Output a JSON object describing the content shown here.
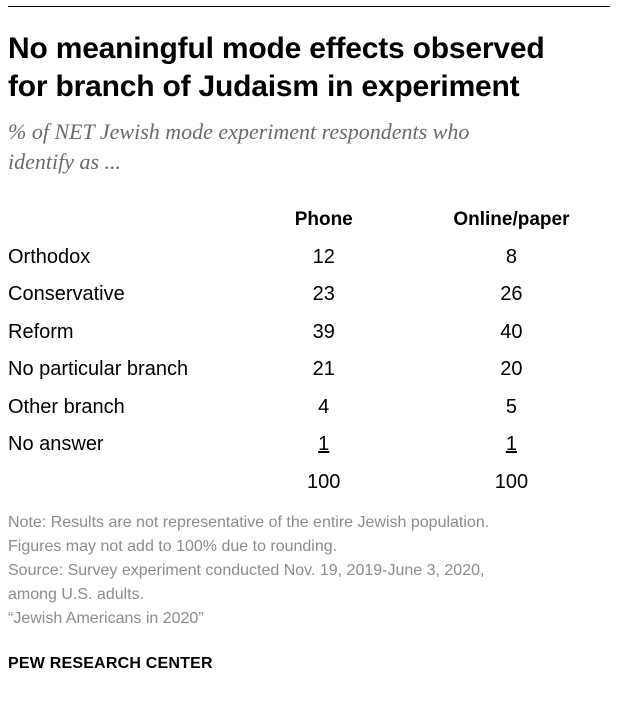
{
  "title_lines": [
    "No meaningful mode effects observed",
    "for branch of Judaism in experiment"
  ],
  "subtitle_lines": [
    "% of NET Jewish mode experiment respondents who",
    "identify as ..."
  ],
  "chart_data": {
    "type": "table",
    "columns": [
      "Phone",
      "Online/paper"
    ],
    "rows": [
      {
        "label": "Orthodox",
        "values": [
          "12",
          "8"
        ]
      },
      {
        "label": "Conservative",
        "values": [
          "23",
          "26"
        ]
      },
      {
        "label": "Reform",
        "values": [
          "39",
          "40"
        ]
      },
      {
        "label": "No particular branch",
        "values": [
          "21",
          "20"
        ]
      },
      {
        "label": "Other branch",
        "values": [
          "4",
          "5"
        ]
      },
      {
        "label": "No answer",
        "values": [
          "1",
          "1"
        ]
      }
    ],
    "totals": [
      "100",
      "100"
    ]
  },
  "notes": {
    "note_lines": [
      "Note: Results are not representative of the entire Jewish population.",
      "Figures may not add to 100% due to rounding."
    ],
    "source_lines": [
      "Source: Survey experiment conducted Nov. 19, 2019-June 3, 2020,",
      "among U.S. adults.",
      "“Jewish Americans in 2020”"
    ]
  },
  "footer": "PEW RESEARCH CENTER"
}
